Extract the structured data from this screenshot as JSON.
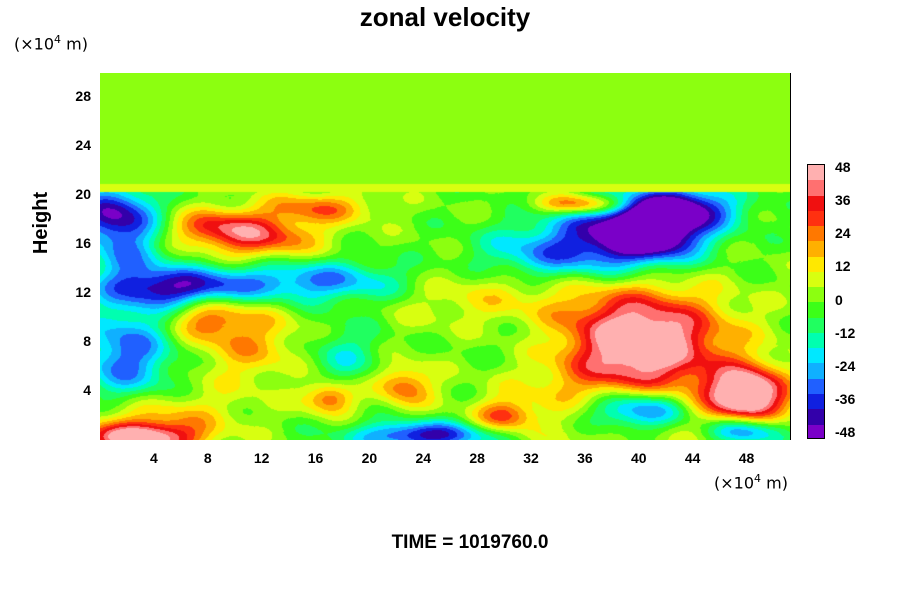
{
  "chart_data": {
    "type": "heatmap",
    "title": "zonal velocity",
    "ylabel": "Height",
    "x_unit_label": "(×10⁴ m)",
    "y_unit_label": "(×10⁴ m)",
    "x_ticks": [
      "4",
      "8",
      "12",
      "16",
      "20",
      "24",
      "28",
      "32",
      "36",
      "40",
      "44",
      "48"
    ],
    "y_ticks": [
      "4",
      "8",
      "12",
      "16",
      "20",
      "24",
      "28"
    ],
    "xlim": [
      0,
      51.3
    ],
    "ylim": [
      0,
      30
    ],
    "colorbar": {
      "ticks": [
        "48",
        "36",
        "24",
        "12",
        "0",
        "-12",
        "-24",
        "-36",
        "-48"
      ],
      "range": [
        -48,
        48
      ],
      "colors": [
        "#7a00c8",
        "#3300aa",
        "#1020e0",
        "#2060ff",
        "#10b0ff",
        "#00e8ff",
        "#00ffb0",
        "#20ff60",
        "#3cff18",
        "#8cff10",
        "#d8ff10",
        "#ffe800",
        "#ffb000",
        "#ff7800",
        "#ff3010",
        "#f01010",
        "#ff7070",
        "#ffb0b0"
      ]
    },
    "background_value": 0,
    "features": [
      {
        "x": 40,
        "y": 8.5,
        "value": 40,
        "sx": 4.0,
        "sy": 2.6
      },
      {
        "x": 39,
        "y": 6,
        "value": 24,
        "sx": 6,
        "sy": 4
      },
      {
        "x": 48,
        "y": 4,
        "value": 48,
        "sx": 1.8,
        "sy": 1.4
      },
      {
        "x": 48,
        "y": 2,
        "value": 20,
        "sx": 3,
        "sy": 2
      },
      {
        "x": 3,
        "y": 0.2,
        "value": 48,
        "sx": 3,
        "sy": 0.9
      },
      {
        "x": 4,
        "y": 2,
        "value": 18,
        "sx": 4,
        "sy": 1.5
      },
      {
        "x": 41,
        "y": 17,
        "value": -46,
        "sx": 2.5,
        "sy": 1.6
      },
      {
        "x": 43,
        "y": 19,
        "value": -40,
        "sx": 3,
        "sy": 1.2
      },
      {
        "x": 38,
        "y": 17,
        "value": -30,
        "sx": 4,
        "sy": 2
      },
      {
        "x": 40,
        "y": 2.5,
        "value": -44,
        "sx": 2.8,
        "sy": 1.2
      },
      {
        "x": 48,
        "y": 0.8,
        "value": -44,
        "sx": 2.2,
        "sy": 0.9
      },
      {
        "x": 24,
        "y": 0.4,
        "value": -40,
        "sx": 3.5,
        "sy": 0.8
      },
      {
        "x": 1,
        "y": 18.5,
        "value": -40,
        "sx": 2.2,
        "sy": 1.6
      },
      {
        "x": 6,
        "y": 12.5,
        "value": -38,
        "sx": 3.5,
        "sy": 1.1
      },
      {
        "x": 2,
        "y": 7,
        "value": -30,
        "sx": 2.5,
        "sy": 3
      },
      {
        "x": 16,
        "y": 13,
        "value": -28,
        "sx": 5,
        "sy": 1.2
      },
      {
        "x": 33,
        "y": 15,
        "value": -22,
        "sx": 4,
        "sy": 1.5
      },
      {
        "x": 12,
        "y": 16.5,
        "value": 30,
        "sx": 3,
        "sy": 1.2
      },
      {
        "x": 8.5,
        "y": 17.5,
        "value": 26,
        "sx": 2.5,
        "sy": 1.0
      },
      {
        "x": 16,
        "y": 19,
        "value": 24,
        "sx": 3,
        "sy": 0.9
      },
      {
        "x": 36,
        "y": 19.3,
        "value": 36,
        "sx": 2.5,
        "sy": 0.6
      },
      {
        "x": 22.5,
        "y": 4.5,
        "value": 26,
        "sx": 1.5,
        "sy": 1.2
      },
      {
        "x": 17,
        "y": 3.5,
        "value": 30,
        "sx": 1.3,
        "sy": 0.9
      },
      {
        "x": 11,
        "y": 8,
        "value": 18,
        "sx": 3,
        "sy": 2.5
      },
      {
        "x": 33,
        "y": 8,
        "value": -12,
        "sx": 4,
        "sy": 2
      },
      {
        "x": 18,
        "y": 7,
        "value": -14,
        "sx": 2,
        "sy": 2
      },
      {
        "x": 30,
        "y": 2,
        "value": 26,
        "sx": 1.5,
        "sy": 0.9
      },
      {
        "x": 8,
        "y": 10,
        "value": 20,
        "sx": 2,
        "sy": 1.2
      },
      {
        "x": 28,
        "y": 12,
        "value": 12,
        "sx": 5,
        "sy": 2
      },
      {
        "x": 2,
        "y": 15,
        "value": -20,
        "sx": 2,
        "sy": 2
      }
    ]
  },
  "time_label": "TIME = 1019760.0"
}
